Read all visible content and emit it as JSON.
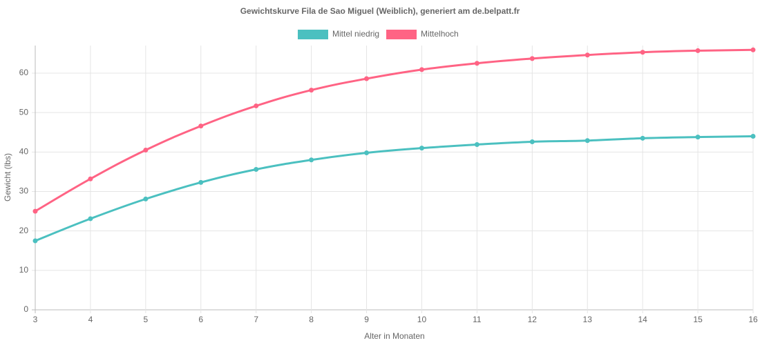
{
  "chart_data": {
    "type": "line",
    "title": "Gewichtskurve Fila de Sao Miguel (Weiblich), generiert am de.belpatt.fr",
    "x_label": "Alter in Monaten",
    "y_label": "Gewicht (lbs)",
    "x": [
      3,
      4,
      5,
      6,
      7,
      8,
      9,
      10,
      11,
      12,
      13,
      14,
      15,
      16
    ],
    "series": [
      {
        "name": "Mittel niedrig",
        "color": "#4bc0c0",
        "values": [
          17.5,
          23.1,
          28.1,
          32.3,
          35.6,
          38.0,
          39.8,
          41.0,
          41.9,
          42.6,
          42.9,
          43.5,
          43.8,
          44.0
        ]
      },
      {
        "name": "Mittelhoch",
        "color": "#ff6384",
        "values": [
          25.0,
          33.2,
          40.5,
          46.6,
          51.7,
          55.7,
          58.6,
          60.9,
          62.5,
          63.7,
          64.6,
          65.3,
          65.7,
          65.9
        ]
      }
    ],
    "xlim": [
      3,
      16
    ],
    "xticks": [
      3,
      4,
      5,
      6,
      7,
      8,
      9,
      10,
      11,
      12,
      13,
      14,
      15,
      16
    ],
    "ylim": [
      0,
      67
    ],
    "yticks": [
      0,
      10,
      20,
      30,
      40,
      50,
      60
    ],
    "grid": true,
    "legend": "top"
  }
}
